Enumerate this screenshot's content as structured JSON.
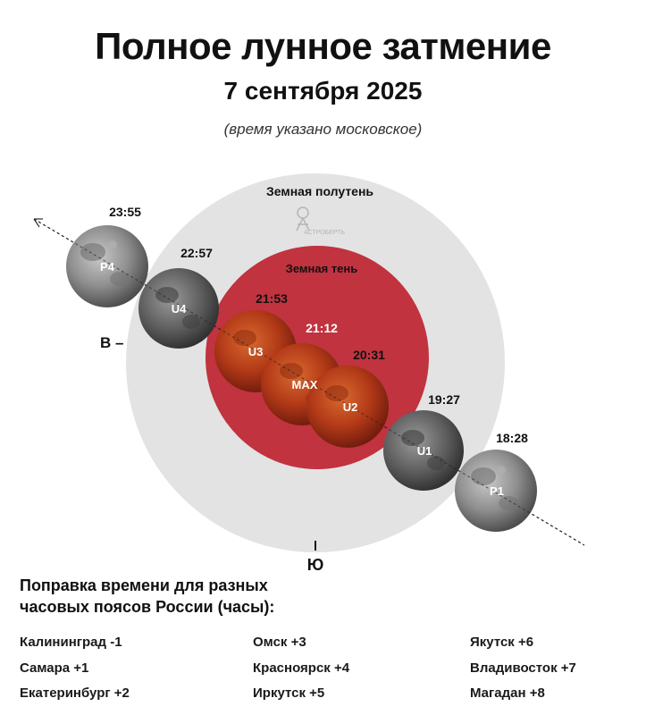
{
  "header": {
    "title": "Полное лунное затмение",
    "date": "7 сентября 2025",
    "note": "(время указано московское)"
  },
  "zones": {
    "penumbra_label": "Земная полутень",
    "umbra_label": "Земная тень",
    "logo_text": "АСТРОБЕРТЬ"
  },
  "directions": {
    "east": "В –",
    "south": "Ю"
  },
  "phases": [
    {
      "code": "P1",
      "time": "18:28"
    },
    {
      "code": "U1",
      "time": "19:27"
    },
    {
      "code": "U2",
      "time": "20:31"
    },
    {
      "code": "MAX",
      "time": "21:12"
    },
    {
      "code": "U3",
      "time": "21:53"
    },
    {
      "code": "U4",
      "time": "22:57"
    },
    {
      "code": "P4",
      "time": "23:55"
    }
  ],
  "timezones": {
    "heading_line1": "Поправка времени для разных",
    "heading_line2": "часовых поясов России (часы):",
    "items": [
      "Калининград -1",
      "Омск +3",
      "Якутск +6",
      "Самара +1",
      "Красноярск +4",
      "Владивосток +7",
      "Екатеринбург +2",
      "Иркутск +5",
      "Магадан +8"
    ]
  },
  "colors": {
    "penumbra": "#e3e3e3",
    "umbra": "#c0333f",
    "eclipsed_moon": "#b8431f",
    "full_moon": "#8c8c8c"
  }
}
